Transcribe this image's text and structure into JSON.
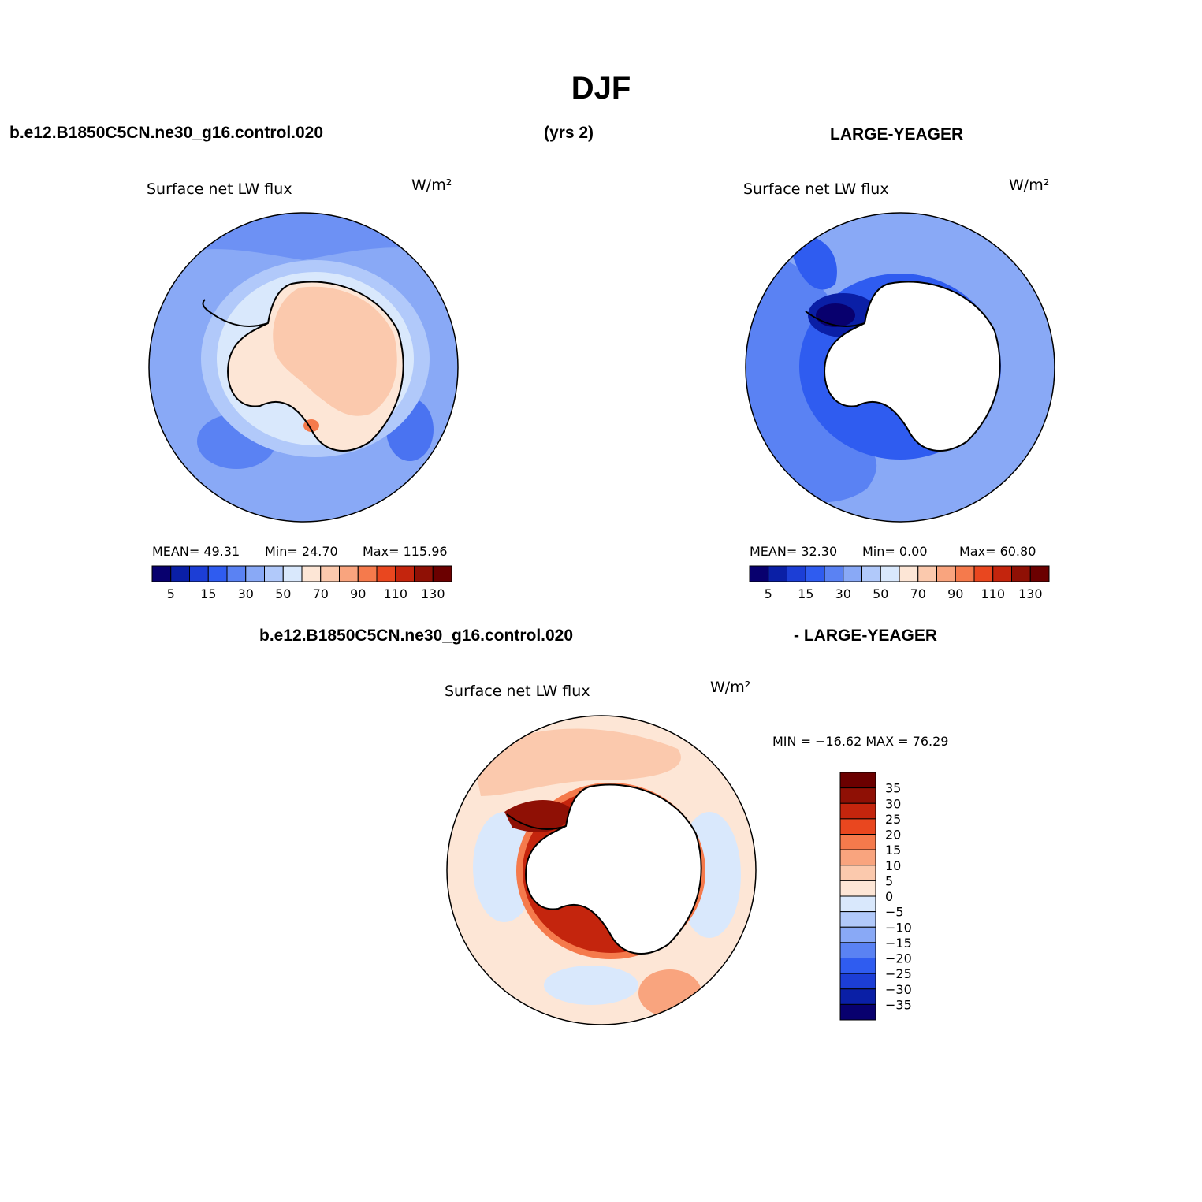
{
  "title": "DJF",
  "case_label": "b.e12.B1850C5CN.ne30_g16.control.020",
  "years_label": "(yrs 2)",
  "obs_label": "LARGE-YEAGER",
  "diff_case_label": "b.e12.B1850C5CN.ne30_g16.control.020",
  "diff_obs_label": "- LARGE-YEAGER",
  "panels": [
    {
      "variable": "Surface net LW flux",
      "units": "W/m²",
      "mean_text": "MEAN=   49.31",
      "min_text": "Min=   24.70",
      "max_text": "Max= 115.96"
    },
    {
      "variable": "Surface net LW flux",
      "units": "W/m²",
      "mean_text": "MEAN=   32.30",
      "min_text": "Min=    0.00",
      "max_text": "Max=   60.80"
    },
    {
      "variable": "Surface net LW flux",
      "units": "W/m²",
      "minmax_text": "MIN = −16.62 MAX =   76.29"
    }
  ],
  "colors": {
    "abs_scale": [
      "#08006e",
      "#0a1fa6",
      "#1c3ed6",
      "#2f5cf0",
      "#5a82f3",
      "#89a9f6",
      "#b1c9fa",
      "#d9e8fc",
      "#fde6d6",
      "#fbc9ad",
      "#f9a47e",
      "#f57a4c",
      "#e9471f",
      "#c4250d",
      "#8f1005",
      "#6b0000"
    ],
    "diff_scale": [
      "#08006e",
      "#0a1fa6",
      "#1c3ed6",
      "#2f5cf0",
      "#5a82f3",
      "#89a9f6",
      "#b1c9fa",
      "#d9e8fc",
      "#fde6d6",
      "#fbc9ad",
      "#f9a47e",
      "#f57a4c",
      "#e9471f",
      "#c4250d",
      "#8f1005",
      "#6b0000"
    ],
    "land": "#ffffff"
  },
  "chart_data": [
    {
      "type": "heatmap",
      "projection": "south polar stereographic",
      "title": "Surface net LW flux",
      "units": "W/m²",
      "colorbar_ticks": [
        "5",
        "15",
        "30",
        "50",
        "70",
        "90",
        "110",
        "130"
      ],
      "mean": 49.31,
      "min": 24.7,
      "max": 115.96
    },
    {
      "type": "heatmap",
      "projection": "south polar stereographic",
      "title": "Surface net LW flux",
      "units": "W/m²",
      "colorbar_ticks": [
        "5",
        "15",
        "30",
        "50",
        "70",
        "90",
        "110",
        "130"
      ],
      "mean": 32.3,
      "min": 0.0,
      "max": 60.8
    },
    {
      "type": "heatmap",
      "projection": "south polar stereographic",
      "title": "Surface net LW flux",
      "units": "W/m²",
      "colorbar_ticks": [
        "35",
        "30",
        "25",
        "20",
        "15",
        "10",
        "5",
        "0",
        "−5",
        "−10",
        "−15",
        "−20",
        "−25",
        "−30",
        "−35"
      ],
      "min": -16.62,
      "max": 76.29
    }
  ]
}
